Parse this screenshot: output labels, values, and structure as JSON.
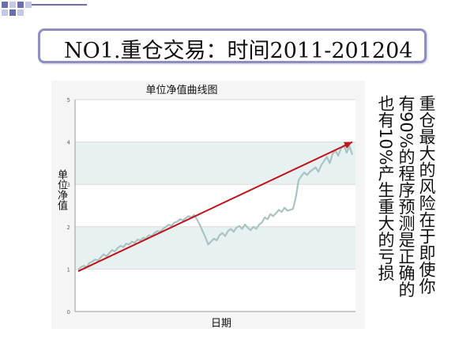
{
  "slide": {
    "title": "NO1.重仓交易：时间2011-201204",
    "side_text": [
      "重仓最大的风险在于即使你",
      "有90%的程序预测是正确的",
      "也有10%产生重大的亏损"
    ]
  },
  "colors": {
    "line": "#a9c3c3",
    "arrow": "#c0141c",
    "frame": "#8d8fc2",
    "band": "#e7f1f1"
  },
  "chart_data": {
    "type": "line",
    "title": "单位净值曲线图",
    "xlabel": "日期",
    "ylabel": "单位净值",
    "ylim": [
      0,
      5
    ],
    "yticks": [
      "0",
      "1",
      "2",
      "3",
      "4",
      "5"
    ],
    "grid": true,
    "series": [
      {
        "values": [
          0.98,
          1.05,
          1.08,
          1.05,
          1.15,
          1.18,
          1.23,
          1.2,
          1.28,
          1.35,
          1.3,
          1.38,
          1.45,
          1.42,
          1.5,
          1.55,
          1.52,
          1.6,
          1.58,
          1.65,
          1.62,
          1.7,
          1.68,
          1.74,
          1.72,
          1.8,
          1.78,
          1.85,
          1.9,
          1.88,
          1.95,
          2.0,
          2.05,
          2.02,
          2.1,
          2.12,
          2.18,
          2.15,
          2.2,
          2.25,
          2.22,
          2.28,
          2.18,
          2.05,
          1.9,
          1.75,
          1.58,
          1.65,
          1.72,
          1.68,
          1.8,
          1.85,
          1.78,
          1.9,
          1.95,
          1.88,
          1.98,
          2.02,
          1.95,
          2.05,
          1.98,
          1.92,
          2.0,
          1.95,
          2.05,
          2.1,
          2.22,
          2.18,
          2.3,
          2.25,
          2.32,
          2.4,
          2.35,
          2.45,
          2.38,
          2.4,
          2.42,
          2.7,
          3.1,
          3.2,
          3.28,
          3.22,
          3.3,
          3.35,
          3.4,
          3.3,
          3.45,
          3.55,
          3.65,
          3.5,
          3.72,
          3.8,
          3.68,
          3.85,
          3.92,
          3.75,
          3.9,
          3.7
        ]
      }
    ],
    "trend_arrow": {
      "from": [
        0,
        0.95
      ],
      "to": [
        97,
        4.0
      ]
    }
  }
}
